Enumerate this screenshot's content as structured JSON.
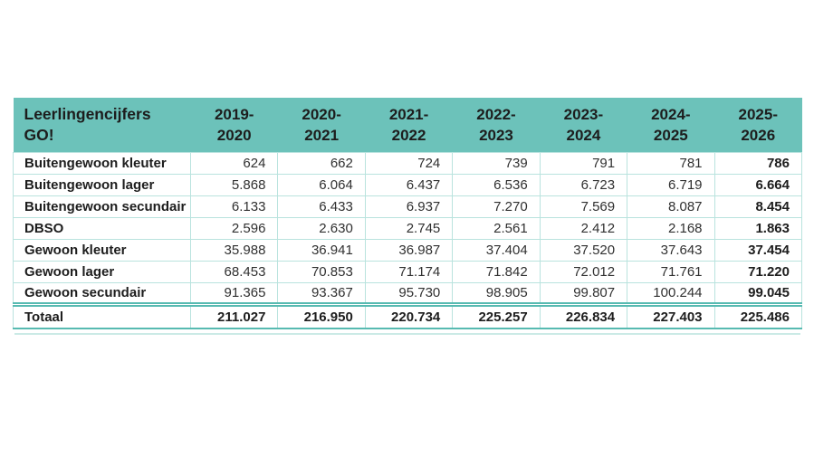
{
  "colors": {
    "page_bg": "#ffffff",
    "header_bg": "#6cc2ba",
    "grid_line": "#b9e3de",
    "strong_line": "#57bab1",
    "text_dark": "#1d1d1d",
    "text_number": "#303030"
  },
  "chart_data": {
    "type": "table",
    "title": "Leerlingencijfers GO!",
    "columns": [
      "2019-2020",
      "2020-2021",
      "2021-2022",
      "2022-2023",
      "2023-2024",
      "2024-2025",
      "2025-2026"
    ],
    "rows": [
      {
        "label": "Buitengewoon kleuter",
        "values": [
          "624",
          "662",
          "724",
          "739",
          "791",
          "781",
          "786"
        ]
      },
      {
        "label": "Buitengewoon lager",
        "values": [
          "5.868",
          "6.064",
          "6.437",
          "6.536",
          "6.723",
          "6.719",
          "6.664"
        ]
      },
      {
        "label": "Buitengewoon secundair",
        "values": [
          "6.133",
          "6.433",
          "6.937",
          "7.270",
          "7.569",
          "8.087",
          "8.454"
        ]
      },
      {
        "label": "DBSO",
        "values": [
          "2.596",
          "2.630",
          "2.745",
          "2.561",
          "2.412",
          "2.168",
          "1.863"
        ]
      },
      {
        "label": "Gewoon kleuter",
        "values": [
          "35.988",
          "36.941",
          "36.987",
          "37.404",
          "37.520",
          "37.643",
          "37.454"
        ]
      },
      {
        "label": "Gewoon lager",
        "values": [
          "68.453",
          "70.853",
          "71.174",
          "71.842",
          "72.012",
          "71.761",
          "71.220"
        ]
      },
      {
        "label": "Gewoon secundair",
        "values": [
          "91.365",
          "93.367",
          "95.730",
          "98.905",
          "99.807",
          "100.244",
          "99.045"
        ]
      }
    ],
    "total_row": {
      "label": "Totaal",
      "values": [
        "211.027",
        "216.950",
        "220.734",
        "225.257",
        "226.834",
        "227.403",
        "225.486"
      ]
    }
  }
}
